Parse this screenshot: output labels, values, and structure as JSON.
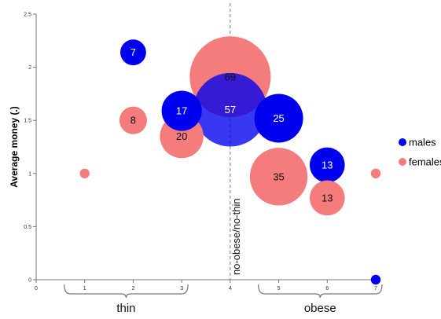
{
  "chart_data": {
    "type": "scatter",
    "ylabel": "Average money (.)",
    "xlim": [
      0,
      7
    ],
    "ylim": [
      0,
      2.5
    ],
    "x_ticks": [
      0,
      1,
      2,
      3,
      4,
      5,
      6,
      7
    ],
    "y_ticks": [
      0,
      0.5,
      1,
      1.5,
      2,
      2.5
    ],
    "grid": false,
    "legend_position": "right",
    "divider": {
      "x": 4,
      "label": "no-obese/no-thin"
    },
    "groups": [
      {
        "label": "thin",
        "x_range": [
          1,
          3
        ]
      },
      {
        "label": "obese",
        "x_range": [
          5,
          7
        ]
      }
    ],
    "series": [
      {
        "name": "males",
        "color": "#0000ee",
        "points": [
          {
            "x": 2,
            "y": 2.14,
            "count": 7,
            "label": "7"
          },
          {
            "x": 3,
            "y": 1.59,
            "count": 17,
            "label": "17"
          },
          {
            "x": 4,
            "y": 1.6,
            "count": 57,
            "label": "57"
          },
          {
            "x": 5,
            "y": 1.52,
            "count": 25,
            "label": "25"
          },
          {
            "x": 6,
            "y": 1.08,
            "count": 13,
            "label": "13"
          },
          {
            "x": 7,
            "y": 0,
            "count": 1,
            "label": ""
          }
        ]
      },
      {
        "name": "females",
        "color": "#f47c7c",
        "points": [
          {
            "x": 1,
            "y": 1.0,
            "count": 1,
            "label": ""
          },
          {
            "x": 2,
            "y": 1.5,
            "count": 8,
            "label": "8"
          },
          {
            "x": 3,
            "y": 1.35,
            "count": 20,
            "label": "20"
          },
          {
            "x": 4,
            "y": 1.91,
            "count": 69,
            "label": "69"
          },
          {
            "x": 5,
            "y": 0.97,
            "count": 35,
            "label": "35"
          },
          {
            "x": 6,
            "y": 0.77,
            "count": 13,
            "label": "13"
          },
          {
            "x": 7,
            "y": 1.0,
            "count": 1,
            "label": ""
          }
        ]
      }
    ]
  }
}
